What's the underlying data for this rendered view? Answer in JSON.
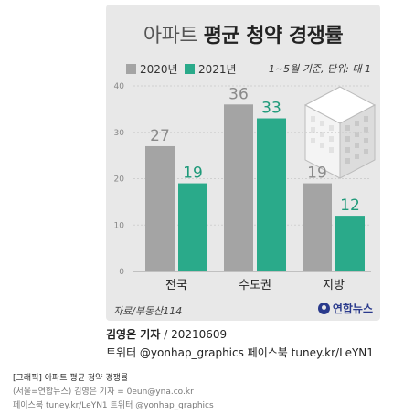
{
  "header": {
    "title_light": "아파트",
    "title_bold": "평균 청약 경쟁률"
  },
  "legend": {
    "items": [
      {
        "label": "2020년",
        "color": "#a4a4a4"
      },
      {
        "label": "2021년",
        "color": "#2aaa8a"
      }
    ],
    "note": "1∼5월 기준, 단위: 대 1"
  },
  "chart_data": {
    "type": "bar",
    "categories": [
      "전국",
      "수도권",
      "지방"
    ],
    "series": [
      {
        "name": "2020년",
        "values": [
          27,
          36,
          19
        ],
        "color": "#a4a4a4"
      },
      {
        "name": "2021년",
        "values": [
          19,
          33,
          12
        ],
        "color": "#2aaa8a"
      }
    ],
    "ylim": [
      0,
      40
    ],
    "yticks": [
      0,
      10,
      20,
      30,
      40
    ],
    "grid": true,
    "legend_position": "top-left",
    "title": "아파트 평균 청약 경쟁률"
  },
  "source": "자료/부동산114",
  "logo_text": "연합뉴스",
  "byline": {
    "name": "김영은 기자",
    "date": "20210609"
  },
  "social": "트위터 @yonhap_graphics  페이스북 tuney.kr/LeYN1",
  "footer": {
    "line1": "[그래픽] 아파트 평균 청약 경쟁률",
    "line2": "(서울=연합뉴스) 김영은 기자 = 0eun@yna.co.kr",
    "line3": "페이스북 tuney.kr/LeYN1 트위터 @yonhap_graphics"
  }
}
